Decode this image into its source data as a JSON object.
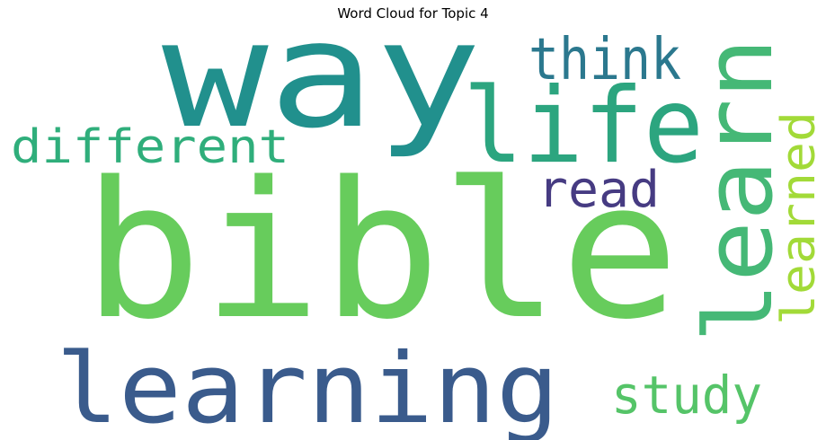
{
  "title": "Word Cloud for Topic 4",
  "words": [
    {
      "text": "bible",
      "color": "#67cc5c"
    },
    {
      "text": "way",
      "color": "#21908d"
    },
    {
      "text": "learning",
      "color": "#3a5b8c"
    },
    {
      "text": "life",
      "color": "#2ca57f"
    },
    {
      "text": "learn",
      "color": "#45b876"
    },
    {
      "text": "different",
      "color": "#2fae7b"
    },
    {
      "text": "think",
      "color": "#2b788e"
    },
    {
      "text": "read",
      "color": "#463b82"
    },
    {
      "text": "study",
      "color": "#55c468"
    },
    {
      "text": "learned",
      "color": "#a2da38"
    }
  ]
}
